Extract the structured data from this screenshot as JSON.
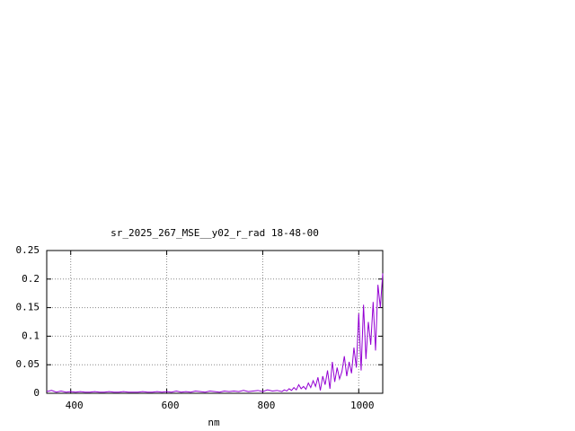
{
  "chart_data": {
    "type": "line",
    "title": "sr_2025_267_MSE__y02_r_rad 18-48-00",
    "x_label": "nm",
    "x": [
      350,
      360,
      370,
      380,
      390,
      400,
      410,
      420,
      430,
      440,
      450,
      460,
      470,
      480,
      490,
      500,
      510,
      520,
      530,
      540,
      550,
      560,
      570,
      580,
      590,
      600,
      610,
      620,
      630,
      640,
      650,
      660,
      670,
      680,
      690,
      700,
      710,
      720,
      730,
      740,
      750,
      760,
      770,
      780,
      790,
      800,
      810,
      820,
      830,
      840,
      845,
      850,
      855,
      860,
      865,
      870,
      875,
      880,
      885,
      890,
      895,
      900,
      905,
      910,
      915,
      920,
      925,
      930,
      935,
      940,
      945,
      950,
      955,
      960,
      965,
      970,
      975,
      980,
      985,
      990,
      995,
      1000,
      1005,
      1010,
      1015,
      1020,
      1025,
      1030,
      1035,
      1040,
      1045,
      1050
    ],
    "series": [
      {
        "name": "sr_2025_267_MSE__y02_r_rad",
        "color": "#9400d3",
        "values": [
          0.003,
          0.005,
          0.002,
          0.004,
          0.002,
          0.003,
          0.002,
          0.003,
          0.002,
          0.002,
          0.003,
          0.002,
          0.002,
          0.003,
          0.002,
          0.002,
          0.003,
          0.002,
          0.002,
          0.002,
          0.003,
          0.002,
          0.002,
          0.003,
          0.002,
          0.003,
          0.002,
          0.004,
          0.002,
          0.003,
          0.002,
          0.004,
          0.003,
          0.002,
          0.004,
          0.003,
          0.002,
          0.004,
          0.003,
          0.004,
          0.003,
          0.005,
          0.003,
          0.004,
          0.005,
          0.003,
          0.006,
          0.004,
          0.005,
          0.003,
          0.006,
          0.004,
          0.008,
          0.005,
          0.01,
          0.006,
          0.015,
          0.008,
          0.012,
          0.007,
          0.018,
          0.01,
          0.022,
          0.012,
          0.028,
          0.005,
          0.03,
          0.015,
          0.04,
          0.008,
          0.055,
          0.02,
          0.045,
          0.025,
          0.038,
          0.065,
          0.03,
          0.055,
          0.035,
          0.08,
          0.045,
          0.14,
          0.04,
          0.155,
          0.06,
          0.125,
          0.085,
          0.16,
          0.075,
          0.19,
          0.15,
          0.21
        ]
      }
    ],
    "xlim": [
      350,
      1050
    ],
    "xticks": [
      400,
      600,
      800,
      1000
    ],
    "ylim": [
      0,
      0.25
    ],
    "yticks": [
      0,
      0.05,
      0.1,
      0.15,
      0.2,
      0.25
    ],
    "grid": true
  }
}
